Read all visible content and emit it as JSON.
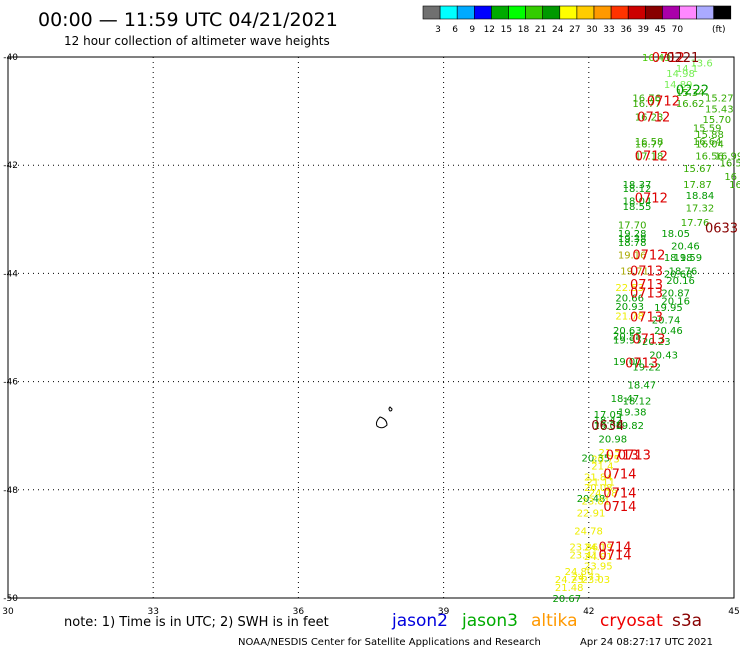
{
  "header": {
    "title": "00:00 — 11:59 UTC 04/21/2021",
    "subtitle": "12 hour collection of altimeter wave heights"
  },
  "colorbar": {
    "unit": "(ft)",
    "colors": [
      "#707070",
      "#00ffff",
      "#00aaff",
      "#0000ff",
      "#00aa00",
      "#00ff00",
      "#33cc00",
      "#009900",
      "#ffff00",
      "#ffcc00",
      "#ff9900",
      "#ff3300",
      "#cc0000",
      "#880000",
      "#aa00aa",
      "#ff88ff",
      "#aaaaff",
      "#000000"
    ],
    "labels": [
      "3",
      "6",
      "9",
      "12",
      "15",
      "18",
      "21",
      "24",
      "27",
      "30",
      "33",
      "36",
      "39",
      "45",
      "70"
    ]
  },
  "footer": {
    "note": "note: 1) Time is in UTC; 2) SWH is in feet",
    "satellites": [
      {
        "name": "jason2",
        "color": "#0000dd"
      },
      {
        "name": "jason3",
        "color": "#00aa00"
      },
      {
        "name": "altika",
        "color": "#ff9900"
      },
      {
        "name": "cryosat",
        "color": "#ee0000"
      },
      {
        "name": "s3a",
        "color": "#880000"
      }
    ],
    "credit": "NOAA/NESDIS Center for Satellite Applications and Research",
    "timestamp": "Apr 24 08:27:17 UTC 2021"
  },
  "chart_data": {
    "type": "scatter",
    "title": "00:00 — 11:59 UTC 04/21/2021",
    "subtitle": "12 hour collection of altimeter wave heights",
    "xlim": [
      30,
      45
    ],
    "ylim": [
      -50,
      -40
    ],
    "x_ticks": [
      30,
      33,
      36,
      39,
      42,
      45
    ],
    "y_ticks": [
      -40,
      -42,
      -44,
      -46,
      -48,
      -50
    ],
    "grid": true,
    "points": [
      {
        "x": 43.1,
        "y": -40.0,
        "v": "16.43",
        "c": "#44cc00"
      },
      {
        "x": 44.1,
        "y": -40.1,
        "v": "13.6",
        "c": "#77ee55"
      },
      {
        "x": 43.8,
        "y": -40.2,
        "v": "14.1",
        "c": "#77ee55"
      },
      {
        "x": 43.6,
        "y": -40.3,
        "v": "14.98",
        "c": "#77ee55"
      },
      {
        "x": 43.55,
        "y": -40.5,
        "v": "14.89",
        "c": "#77ee55"
      },
      {
        "x": 43.8,
        "y": -40.65,
        "v": "15.34",
        "c": "#33aa00"
      },
      {
        "x": 44.4,
        "y": -40.75,
        "v": "15.27",
        "c": "#33aa00"
      },
      {
        "x": 42.9,
        "y": -40.75,
        "v": "16.76",
        "c": "#33aa00"
      },
      {
        "x": 42.9,
        "y": -40.85,
        "v": "16.77",
        "c": "#33aa00"
      },
      {
        "x": 43.8,
        "y": -40.85,
        "v": "16.62",
        "c": "#33aa00"
      },
      {
        "x": 44.4,
        "y": -40.95,
        "v": "15.43",
        "c": "#33aa00"
      },
      {
        "x": 42.95,
        "y": -41.1,
        "v": "16.23",
        "c": "#33aa00"
      },
      {
        "x": 44.35,
        "y": -41.15,
        "v": "15.70",
        "c": "#33aa00"
      },
      {
        "x": 44.15,
        "y": -41.3,
        "v": "15.59",
        "c": "#33aa00"
      },
      {
        "x": 44.2,
        "y": -41.42,
        "v": "15.88",
        "c": "#33aa00"
      },
      {
        "x": 44.15,
        "y": -41.55,
        "v": "16.64",
        "c": "#33aa00"
      },
      {
        "x": 44.2,
        "y": -41.6,
        "v": "16.04",
        "c": "#33aa00"
      },
      {
        "x": 42.95,
        "y": -41.55,
        "v": "16.58",
        "c": "#33aa00"
      },
      {
        "x": 42.95,
        "y": -41.6,
        "v": "16.77",
        "c": "#33aa00"
      },
      {
        "x": 42.95,
        "y": -41.82,
        "v": "17.18",
        "c": "#33aa00"
      },
      {
        "x": 44.2,
        "y": -41.82,
        "v": "16.56",
        "c": "#33aa00"
      },
      {
        "x": 44.6,
        "y": -41.82,
        "v": "16.99",
        "c": "#33aa00"
      },
      {
        "x": 44.7,
        "y": -41.95,
        "v": "16.56",
        "c": "#33aa00"
      },
      {
        "x": 43.95,
        "y": -42.05,
        "v": "15.67",
        "c": "#33aa00"
      },
      {
        "x": 44.8,
        "y": -42.2,
        "v": "16",
        "c": "#33aa00"
      },
      {
        "x": 44.9,
        "y": -42.35,
        "v": "16",
        "c": "#33aa00"
      },
      {
        "x": 43.95,
        "y": -42.35,
        "v": "17.87",
        "c": "#33aa00"
      },
      {
        "x": 42.7,
        "y": -42.35,
        "v": "18.37",
        "c": "#009900"
      },
      {
        "x": 42.7,
        "y": -42.42,
        "v": "18.12",
        "c": "#009900"
      },
      {
        "x": 44.0,
        "y": -42.55,
        "v": "18.84",
        "c": "#009900"
      },
      {
        "x": 42.7,
        "y": -42.65,
        "v": "18.04",
        "c": "#009900"
      },
      {
        "x": 42.7,
        "y": -42.75,
        "v": "18.55",
        "c": "#009900"
      },
      {
        "x": 44.0,
        "y": -42.78,
        "v": "17.32",
        "c": "#33aa00"
      },
      {
        "x": 43.9,
        "y": -43.05,
        "v": "17.76",
        "c": "#33aa00"
      },
      {
        "x": 42.6,
        "y": -43.1,
        "v": "17.70",
        "c": "#33aa00"
      },
      {
        "x": 43.5,
        "y": -43.25,
        "v": "18.05",
        "c": "#009900"
      },
      {
        "x": 42.6,
        "y": -43.25,
        "v": "19.28",
        "c": "#009900"
      },
      {
        "x": 42.6,
        "y": -43.35,
        "v": "19.38",
        "c": "#009900"
      },
      {
        "x": 42.6,
        "y": -43.42,
        "v": "18.78",
        "c": "#009900"
      },
      {
        "x": 43.7,
        "y": -43.48,
        "v": "20.46",
        "c": "#009900"
      },
      {
        "x": 42.6,
        "y": -43.65,
        "v": "19.16",
        "c": "#aaaa00"
      },
      {
        "x": 43.55,
        "y": -43.7,
        "v": "18.18",
        "c": "#009900"
      },
      {
        "x": 43.75,
        "y": -43.7,
        "v": "19.59",
        "c": "#009900"
      },
      {
        "x": 42.65,
        "y": -43.95,
        "v": "19.71",
        "c": "#aaaa00"
      },
      {
        "x": 43.65,
        "y": -43.95,
        "v": "18.76",
        "c": "#009900"
      },
      {
        "x": 43.55,
        "y": -44.0,
        "v": "20.68",
        "c": "#009900"
      },
      {
        "x": 43.6,
        "y": -44.12,
        "v": "20.16",
        "c": "#009900"
      },
      {
        "x": 42.55,
        "y": -44.25,
        "v": "22.53",
        "c": "#eeee00"
      },
      {
        "x": 43.5,
        "y": -44.35,
        "v": "20.87",
        "c": "#009900"
      },
      {
        "x": 42.55,
        "y": -44.45,
        "v": "20.66",
        "c": "#009900"
      },
      {
        "x": 43.5,
        "y": -44.5,
        "v": "20.16",
        "c": "#009900"
      },
      {
        "x": 42.55,
        "y": -44.6,
        "v": "20.93",
        "c": "#009900"
      },
      {
        "x": 43.35,
        "y": -44.62,
        "v": "19.95",
        "c": "#009900"
      },
      {
        "x": 42.55,
        "y": -44.78,
        "v": "21.78",
        "c": "#eeee00"
      },
      {
        "x": 43.3,
        "y": -44.85,
        "v": "20.74",
        "c": "#009900"
      },
      {
        "x": 42.5,
        "y": -45.05,
        "v": "20.63",
        "c": "#009900"
      },
      {
        "x": 43.35,
        "y": -45.05,
        "v": "20.46",
        "c": "#009900"
      },
      {
        "x": 42.5,
        "y": -45.15,
        "v": "20.55",
        "c": "#009900"
      },
      {
        "x": 42.5,
        "y": -45.22,
        "v": "19.95",
        "c": "#009900"
      },
      {
        "x": 43.1,
        "y": -45.25,
        "v": "20.23",
        "c": "#009900"
      },
      {
        "x": 43.25,
        "y": -45.5,
        "v": "20.43",
        "c": "#009900"
      },
      {
        "x": 42.5,
        "y": -45.62,
        "v": "19.00",
        "c": "#009900"
      },
      {
        "x": 42.9,
        "y": -45.72,
        "v": "19.22",
        "c": "#009900"
      },
      {
        "x": 42.8,
        "y": -46.05,
        "v": "18.47",
        "c": "#009900"
      },
      {
        "x": 42.45,
        "y": -46.3,
        "v": "18.47",
        "c": "#009900"
      },
      {
        "x": 42.7,
        "y": -46.35,
        "v": "18.12",
        "c": "#009900"
      },
      {
        "x": 42.6,
        "y": -46.55,
        "v": "19.38",
        "c": "#009900"
      },
      {
        "x": 42.1,
        "y": -46.6,
        "v": "17.05",
        "c": "#009900"
      },
      {
        "x": 42.1,
        "y": -46.7,
        "v": "18.42",
        "c": "#009900"
      },
      {
        "x": 42.1,
        "y": -46.8,
        "v": "19.06",
        "c": "#009900"
      },
      {
        "x": 42.55,
        "y": -46.8,
        "v": "19.82",
        "c": "#009900"
      },
      {
        "x": 42.2,
        "y": -47.05,
        "v": "20.98",
        "c": "#009900"
      },
      {
        "x": 42.2,
        "y": -47.3,
        "v": "21.5",
        "c": "#eeee00"
      },
      {
        "x": 41.85,
        "y": -47.4,
        "v": "20.35",
        "c": "#009900"
      },
      {
        "x": 42.05,
        "y": -47.42,
        "v": "20.75",
        "c": "#eeee00"
      },
      {
        "x": 42.05,
        "y": -47.55,
        "v": "21.4",
        "c": "#eeee00"
      },
      {
        "x": 41.9,
        "y": -47.75,
        "v": "21.84",
        "c": "#eeee00"
      },
      {
        "x": 41.95,
        "y": -47.85,
        "v": "21.11",
        "c": "#eeee00"
      },
      {
        "x": 41.9,
        "y": -47.95,
        "v": "20.08",
        "c": "#eeee00"
      },
      {
        "x": 42.0,
        "y": -48.05,
        "v": "24.78",
        "c": "#eeee00"
      },
      {
        "x": 41.75,
        "y": -48.15,
        "v": "20.48",
        "c": "#009900"
      },
      {
        "x": 41.85,
        "y": -48.2,
        "v": "23.81",
        "c": "#eeee00"
      },
      {
        "x": 41.75,
        "y": -48.42,
        "v": "22.91",
        "c": "#eeee00"
      },
      {
        "x": 41.7,
        "y": -48.75,
        "v": "24.78",
        "c": "#eeee00"
      },
      {
        "x": 41.6,
        "y": -49.05,
        "v": "23.86",
        "c": "#eeee00"
      },
      {
        "x": 41.9,
        "y": -49.05,
        "v": "24.19",
        "c": "#eeee00"
      },
      {
        "x": 41.6,
        "y": -49.2,
        "v": "23.41",
        "c": "#eeee00"
      },
      {
        "x": 41.9,
        "y": -49.22,
        "v": "24.91",
        "c": "#eeee00"
      },
      {
        "x": 41.9,
        "y": -49.4,
        "v": "23.95",
        "c": "#eeee00"
      },
      {
        "x": 41.5,
        "y": -49.5,
        "v": "24.80",
        "c": "#eeee00"
      },
      {
        "x": 41.65,
        "y": -49.6,
        "v": "24.73",
        "c": "#eeee00"
      },
      {
        "x": 41.3,
        "y": -49.65,
        "v": "24.23",
        "c": "#eeee00"
      },
      {
        "x": 41.85,
        "y": -49.65,
        "v": "23.03",
        "c": "#eeee00"
      },
      {
        "x": 41.3,
        "y": -49.8,
        "v": "21.48",
        "c": "#eeee00"
      },
      {
        "x": 41.25,
        "y": -50.0,
        "v": "20.67",
        "c": "#009900"
      }
    ],
    "time_labels": [
      {
        "x": 43.3,
        "y": -40.0,
        "t": "0712",
        "c": "#dd0000"
      },
      {
        "x": 43.6,
        "y": -40.0,
        "t": "0221",
        "c": "#880000"
      },
      {
        "x": 43.8,
        "y": -40.6,
        "t": "0222",
        "c": "#009900"
      },
      {
        "x": 43.2,
        "y": -40.8,
        "t": "0712",
        "c": "#dd0000"
      },
      {
        "x": 43.0,
        "y": -41.1,
        "t": "0712",
        "c": "#dd0000"
      },
      {
        "x": 42.95,
        "y": -41.82,
        "t": "0712",
        "c": "#dd0000"
      },
      {
        "x": 42.95,
        "y": -42.6,
        "t": "0712",
        "c": "#dd0000"
      },
      {
        "x": 44.4,
        "y": -43.15,
        "t": "0633",
        "c": "#880000"
      },
      {
        "x": 42.9,
        "y": -43.65,
        "t": "0712",
        "c": "#dd0000"
      },
      {
        "x": 42.85,
        "y": -43.95,
        "t": "0713",
        "c": "#dd0000"
      },
      {
        "x": 42.85,
        "y": -44.2,
        "t": "0713",
        "c": "#dd0000"
      },
      {
        "x": 42.85,
        "y": -44.35,
        "t": "0713",
        "c": "#dd0000"
      },
      {
        "x": 42.85,
        "y": -44.8,
        "t": "0713",
        "c": "#dd0000"
      },
      {
        "x": 42.9,
        "y": -45.2,
        "t": "0713",
        "c": "#dd0000"
      },
      {
        "x": 42.75,
        "y": -45.65,
        "t": "0713",
        "c": "#dd0000"
      },
      {
        "x": 42.05,
        "y": -46.8,
        "t": "0634",
        "c": "#880000"
      },
      {
        "x": 42.35,
        "y": -47.35,
        "t": "0713",
        "c": "#dd0000"
      },
      {
        "x": 42.6,
        "y": -47.35,
        "t": "0713",
        "c": "#dd0000"
      },
      {
        "x": 42.3,
        "y": -47.7,
        "t": "0714",
        "c": "#dd0000"
      },
      {
        "x": 42.3,
        "y": -48.05,
        "t": "0714",
        "c": "#dd0000"
      },
      {
        "x": 42.3,
        "y": -48.3,
        "t": "0714",
        "c": "#dd0000"
      },
      {
        "x": 42.2,
        "y": -49.05,
        "t": "0714",
        "c": "#dd0000"
      },
      {
        "x": 42.2,
        "y": -49.2,
        "t": "0714",
        "c": "#dd0000"
      }
    ]
  }
}
